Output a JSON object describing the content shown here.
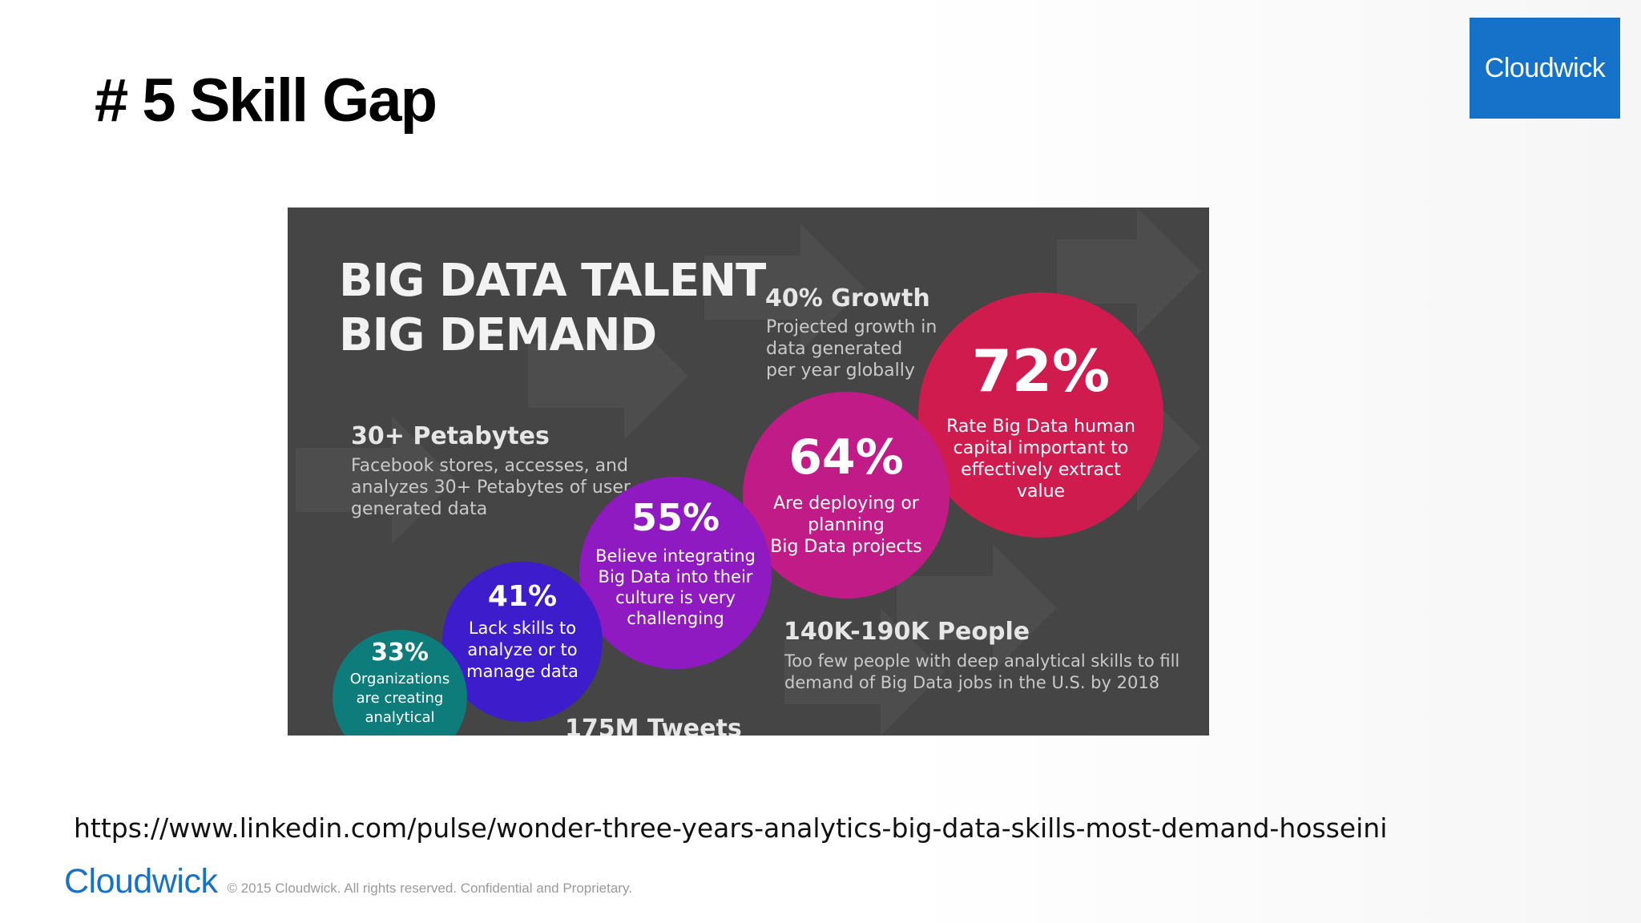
{
  "slide": {
    "title": "# 5 Skill Gap",
    "logo_text": "Cloudwick"
  },
  "infographic": {
    "heading_line1": "BIG DATA TALENT",
    "heading_line2": "BIG DEMAND",
    "growth": {
      "headline": "40% Growth",
      "line1": "Projected growth in",
      "line2": "data generated",
      "line3": "per year globally"
    },
    "petabytes": {
      "headline": "30+ Petabytes",
      "line1": "Facebook stores, accesses, and",
      "line2": "analyzes 30+ Petabytes of  user",
      "line3": "generated data"
    },
    "people": {
      "headline": "140K-190K People",
      "line1": "Too few people with deep analytical skills to fill",
      "line2": "demand of Big Data jobs in the U.S. by 2018"
    },
    "circles": {
      "c72": {
        "pct": "72%",
        "desc": "Rate Big Data human\ncapital important to\neffectively extract\nvalue"
      },
      "c64": {
        "pct": "64%",
        "desc": "Are deploying or\nplanning\nBig Data projects"
      },
      "c55": {
        "pct": "55%",
        "desc": "Believe integrating\nBig Data into their\nculture is very\nchallenging"
      },
      "c41": {
        "pct": "41%",
        "desc": "Lack skills to\nanalyze or to\nmanage data"
      },
      "c33": {
        "pct": "33%",
        "desc": "Organizations\nare creating\nanalytical"
      }
    },
    "tweets_partial": "175M Tweets"
  },
  "source_url": "https://www.linkedin.com/pulse/wonder-three-years-analytics-big-data-skills-most-demand-hosseini",
  "footer": {
    "brand": "Cloudwick",
    "copyright": "© 2015 Cloudwick. All rights reserved. Confidential and Proprietary."
  }
}
